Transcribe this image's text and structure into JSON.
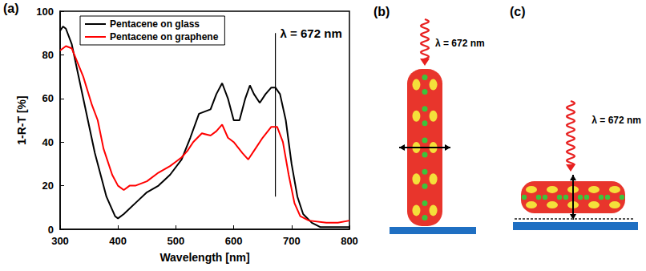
{
  "chart_data": {
    "type": "line",
    "panel_label": "(a)",
    "x_label": "Wavelength [nm]",
    "y_label": "1-R-T [%]",
    "xlim": [
      300,
      800
    ],
    "xticks": [
      300,
      400,
      500,
      600,
      700,
      800
    ],
    "ylim": [
      0,
      100
    ],
    "yticks": [
      0,
      20,
      40,
      60,
      80,
      100
    ],
    "grid": false,
    "legend": "top-left",
    "series": [
      {
        "name": "Pentacene on glass",
        "color": "#000000",
        "x": [
          300,
          305,
          310,
          320,
          340,
          360,
          380,
          395,
          400,
          410,
          430,
          450,
          470,
          490,
          510,
          525,
          540,
          550,
          560,
          570,
          580,
          590,
          600,
          610,
          620,
          628,
          635,
          645,
          655,
          665,
          672,
          680,
          690,
          700,
          710,
          720,
          735,
          750,
          800
        ],
        "values": [
          91,
          93,
          92,
          85,
          60,
          35,
          15,
          6,
          5,
          7,
          12,
          17,
          20,
          25,
          32,
          42,
          53,
          54,
          55,
          62,
          67,
          60,
          50,
          50,
          60,
          66,
          62,
          58,
          62,
          65,
          65,
          62,
          50,
          30,
          15,
          7,
          3,
          1,
          1
        ]
      },
      {
        "name": "Pentacene on graphene",
        "color": "#ff0000",
        "x": [
          300,
          310,
          320,
          340,
          355,
          365,
          375,
          390,
          400,
          410,
          420,
          430,
          450,
          470,
          490,
          500,
          510,
          520,
          530,
          545,
          560,
          570,
          580,
          590,
          600,
          615,
          625,
          635,
          650,
          665,
          675,
          685,
          695,
          705,
          715,
          730,
          760,
          780,
          800
        ],
        "values": [
          82,
          84,
          83,
          70,
          57,
          50,
          37,
          25,
          20,
          18,
          20,
          20,
          22,
          26,
          29,
          31,
          33,
          36,
          40,
          44,
          43,
          45,
          48,
          42,
          40,
          35,
          32,
          36,
          42,
          47,
          47,
          40,
          25,
          12,
          6,
          4,
          3,
          3,
          4
        ]
      }
    ],
    "annotations": [
      {
        "x": 672,
        "y": [
          15,
          90
        ],
        "text": "λ = 672 nm"
      }
    ]
  },
  "diagrams": [
    {
      "panel_label": "(b)",
      "annotation": "λ = 672 nm"
    },
    {
      "panel_label": "(c)",
      "annotation": "λ = 672 nm"
    }
  ]
}
